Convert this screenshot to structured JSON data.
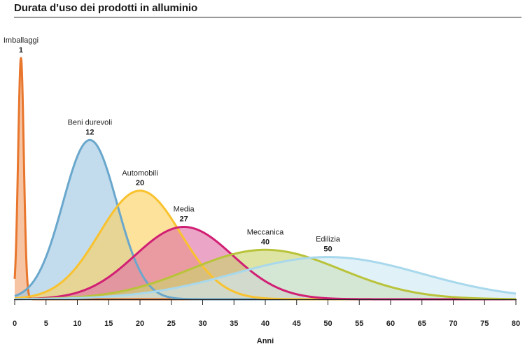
{
  "chart_data": {
    "type": "area",
    "title": "Durata d’uso dei prodotti in alluminio",
    "xlabel": "Anni",
    "ylabel": "",
    "xlim": [
      0,
      80
    ],
    "xticks": [
      0,
      5,
      10,
      15,
      20,
      25,
      30,
      35,
      40,
      45,
      50,
      55,
      60,
      65,
      70,
      75,
      80
    ],
    "grid": false,
    "legend": "none",
    "series": [
      {
        "name": "Imballaggi",
        "label_value": "1",
        "mean": 1,
        "sd": 0.45,
        "peak": 1.0,
        "stroke": "#e8762d",
        "fill": "#f0a06a"
      },
      {
        "name": "Beni durevoli",
        "label_value": "12",
        "mean": 12,
        "sd": 4.3,
        "peak": 0.66,
        "stroke": "#6aa7cc",
        "fill": "#9cc6e2"
      },
      {
        "name": "Automobili",
        "label_value": "20",
        "mean": 20,
        "sd": 6.5,
        "peak": 0.45,
        "stroke": "#f9c22e",
        "fill": "#fbd060"
      },
      {
        "name": "Media",
        "label_value": "27",
        "mean": 27,
        "sd": 7.8,
        "peak": 0.3,
        "stroke": "#d11f74",
        "fill": "#de6fa5"
      },
      {
        "name": "Meccanica",
        "label_value": "40",
        "mean": 40,
        "sd": 12,
        "peak": 0.205,
        "stroke": "#b9c33a",
        "fill": "#c9d36c"
      },
      {
        "name": "Edilizia",
        "label_value": "50",
        "mean": 50,
        "sd": 15,
        "peak": 0.175,
        "stroke": "#a8d8ec",
        "fill": "#cfe9f4"
      }
    ]
  }
}
